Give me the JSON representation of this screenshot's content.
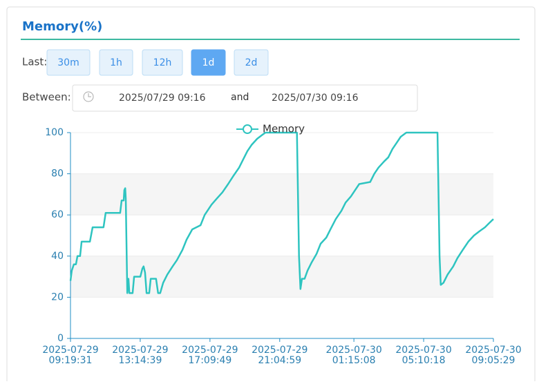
{
  "panel": {
    "title": "Memory(%)",
    "last_label": "Last:",
    "ranges": [
      "30m",
      "1h",
      "12h",
      "1d",
      "2d"
    ],
    "selected_range": "1d",
    "between_label": "Between:",
    "from": "2025/07/29 09:16",
    "and": "and",
    "to": "2025/07/30 09:16"
  },
  "chart_data": {
    "type": "line",
    "xlim": [
      "2025-07-29 09:19:31",
      "2025-07-30 09:05:29"
    ],
    "xticks": [
      {
        "value": "2025-07-29 09:19:31",
        "label": [
          "2025-07-29",
          "09:19:31"
        ]
      },
      {
        "value": "2025-07-29 13:14:39",
        "label": [
          "2025-07-29",
          "13:14:39"
        ]
      },
      {
        "value": "2025-07-29 17:09:49",
        "label": [
          "2025-07-29",
          "17:09:49"
        ]
      },
      {
        "value": "2025-07-29 21:04:59",
        "label": [
          "2025-07-29",
          "21:04:59"
        ]
      },
      {
        "value": "2025-07-30 01:15:08",
        "label": [
          "2025-07-30",
          "01:15:08"
        ]
      },
      {
        "value": "2025-07-30 05:10:18",
        "label": [
          "2025-07-30",
          "05:10:18"
        ]
      },
      {
        "value": "2025-07-30 09:05:29",
        "label": [
          "2025-07-30",
          "09:05:29"
        ]
      }
    ],
    "ylim": [
      0,
      100
    ],
    "yticks": [
      0,
      20,
      40,
      60,
      80,
      100
    ],
    "grid": true,
    "bands": true,
    "x": [
      "2025-07-29 09:19:31",
      "2025-07-29 09:24:00",
      "2025-07-29 09:31:00",
      "2025-07-29 09:38:00",
      "2025-07-29 09:43:00",
      "2025-07-29 09:52:00",
      "2025-07-29 09:57:00",
      "2025-07-29 10:25:00",
      "2025-07-29 10:34:00",
      "2025-07-29 11:11:00",
      "2025-07-29 11:18:00",
      "2025-07-29 12:07:00",
      "2025-07-29 12:12:00",
      "2025-07-29 12:19:00",
      "2025-07-29 12:21:00",
      "2025-07-29 12:24:00",
      "2025-07-29 12:26:00",
      "2025-07-29 12:31:00",
      "2025-07-29 12:35:00",
      "2025-07-29 12:38:00",
      "2025-07-29 12:49:00",
      "2025-07-29 12:54:00",
      "2025-07-29 13:15:00",
      "2025-07-29 13:22:00",
      "2025-07-29 13:26:00",
      "2025-07-29 13:31:00",
      "2025-07-29 13:36:00",
      "2025-07-29 13:45:00",
      "2025-07-29 13:50:00",
      "2025-07-29 14:08:00",
      "2025-07-29 14:15:00",
      "2025-07-29 14:22:00",
      "2025-07-29 14:32:00",
      "2025-07-29 14:46:00",
      "2025-07-29 15:04:00",
      "2025-07-29 15:18:00",
      "2025-07-29 15:37:00",
      "2025-07-29 15:51:00",
      "2025-07-29 16:10:00",
      "2025-07-29 16:38:00",
      "2025-07-29 16:52:00",
      "2025-07-29 17:15:00",
      "2025-07-29 17:33:00",
      "2025-07-29 17:52:00",
      "2025-07-29 18:11:00",
      "2025-07-29 18:29:00",
      "2025-07-29 18:48:00",
      "2025-07-29 19:02:00",
      "2025-07-29 19:16:00",
      "2025-07-29 19:30:00",
      "2025-07-29 19:49:00",
      "2025-07-29 20:07:00",
      "2025-07-29 20:17:00",
      "2025-07-29 22:03:00",
      "2025-07-29 22:10:00",
      "2025-07-29 22:15:00",
      "2025-07-29 22:20:00",
      "2025-07-29 22:29:00",
      "2025-07-29 22:39:00",
      "2025-07-29 22:53:00",
      "2025-07-29 23:09:00",
      "2025-07-29 23:23:00",
      "2025-07-29 23:42:00",
      "2025-07-29 23:56:00",
      "2025-07-30 00:14:00",
      "2025-07-30 00:33:00",
      "2025-07-30 00:47:00",
      "2025-07-30 01:05:00",
      "2025-07-30 01:19:00",
      "2025-07-30 01:33:00",
      "2025-07-30 02:10:00",
      "2025-07-30 02:24:00",
      "2025-07-30 02:38:00",
      "2025-07-30 02:57:00",
      "2025-07-30 03:11:00",
      "2025-07-30 03:25:00",
      "2025-07-30 03:39:00",
      "2025-07-30 03:53:00",
      "2025-07-30 04:12:00",
      "2025-07-30 05:57:00",
      "2025-07-30 06:04:00",
      "2025-07-30 06:08:00",
      "2025-07-30 06:17:00",
      "2025-07-30 06:31:00",
      "2025-07-30 06:50:00",
      "2025-07-30 07:04:00",
      "2025-07-30 07:22:00",
      "2025-07-30 07:41:00",
      "2025-07-30 08:00:00",
      "2025-07-30 08:18:00",
      "2025-07-30 08:37:00",
      "2025-07-30 08:51:00",
      "2025-07-30 09:05:29"
    ],
    "series": [
      {
        "name": "Memory",
        "color": "#2ec4c0",
        "values": [
          28,
          33,
          36,
          36,
          40,
          40,
          47,
          47,
          54,
          54,
          61,
          61,
          67,
          67,
          72,
          73,
          68,
          22,
          29,
          22,
          22,
          30,
          30,
          34,
          35,
          32,
          22,
          22,
          29,
          29,
          22,
          22,
          27,
          31,
          35,
          38,
          43,
          48,
          53,
          55,
          60,
          65,
          68,
          71,
          75,
          79,
          83,
          87,
          91,
          94,
          97,
          99,
          100,
          100,
          40,
          24,
          29,
          29,
          33,
          37,
          41,
          46,
          49,
          53,
          58,
          62,
          66,
          69,
          72,
          75,
          76,
          80,
          83,
          86,
          88,
          92,
          95,
          98,
          100,
          100,
          40,
          26,
          27,
          31,
          35,
          39,
          43,
          47,
          50,
          52,
          54,
          56,
          58
        ]
      }
    ]
  }
}
